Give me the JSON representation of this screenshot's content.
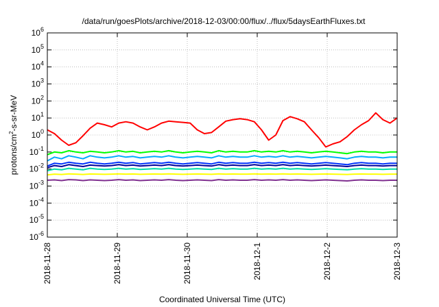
{
  "chart_data": {
    "type": "line",
    "title": "/data/run/goesPlots/archive/2018-12-03/00:00/flux/../flux/5daysEarthFluxes.txt",
    "xlabel": "Coordinated Universal Time (UTC)",
    "ylabel": {
      "prefix": "protons/cm",
      "sup": "2",
      "suffix": "-s-sr-MeV"
    },
    "y_scale": "log",
    "ylim": [
      1e-06,
      1000000.0
    ],
    "y_ticks": [
      {
        "base": "10",
        "exp": "-6",
        "value": 1e-06
      },
      {
        "base": "10",
        "exp": "-5",
        "value": 1e-05
      },
      {
        "base": "10",
        "exp": "-4",
        "value": 0.0001
      },
      {
        "base": "10",
        "exp": "-3",
        "value": 0.001
      },
      {
        "base": "10",
        "exp": "-2",
        "value": 0.01
      },
      {
        "base": "10",
        "exp": "-1",
        "value": 0.1
      },
      {
        "base": "10",
        "exp": "0",
        "value": 1
      },
      {
        "base": "10",
        "exp": "1",
        "value": 10
      },
      {
        "base": "10",
        "exp": "2",
        "value": 100
      },
      {
        "base": "10",
        "exp": "3",
        "value": 1000
      },
      {
        "base": "10",
        "exp": "4",
        "value": 10000
      },
      {
        "base": "10",
        "exp": "5",
        "value": 100000
      },
      {
        "base": "10",
        "exp": "6",
        "value": 1000000
      }
    ],
    "x_ticks": [
      "2018-11-28",
      "2018-11-29",
      "2018-11-30",
      "2018-12-1",
      "2018-12-2",
      "2018-12-3"
    ],
    "xlim": [
      "2018-11-28",
      "2018-12-3"
    ],
    "grid": true,
    "series": [
      {
        "color": "#ff0000",
        "values": [
          2,
          1.2,
          0.5,
          0.25,
          0.35,
          0.9,
          2.5,
          5,
          4,
          3,
          5,
          6,
          5,
          3,
          2,
          3,
          5,
          6.5,
          6,
          5.5,
          5,
          2,
          1.2,
          1.4,
          3,
          6.5,
          8,
          9,
          8,
          6,
          2,
          0.5,
          1,
          7,
          12,
          9,
          6,
          2,
          0.7,
          0.2,
          0.3,
          0.4,
          0.8,
          2,
          4,
          7,
          20,
          8,
          5,
          10
        ]
      },
      {
        "color": "#00ff00",
        "values": [
          0.07,
          0.1,
          0.09,
          0.12,
          0.1,
          0.09,
          0.11,
          0.1,
          0.09,
          0.1,
          0.12,
          0.1,
          0.11,
          0.09,
          0.1,
          0.11,
          0.1,
          0.12,
          0.1,
          0.09,
          0.1,
          0.11,
          0.1,
          0.09,
          0.12,
          0.1,
          0.11,
          0.1,
          0.1,
          0.12,
          0.1,
          0.11,
          0.1,
          0.12,
          0.1,
          0.11,
          0.1,
          0.09,
          0.1,
          0.11,
          0.1,
          0.09,
          0.08,
          0.1,
          0.11,
          0.1,
          0.1,
          0.09,
          0.1,
          0.1
        ]
      },
      {
        "color": "#00aaff",
        "values": [
          0.03,
          0.05,
          0.04,
          0.06,
          0.05,
          0.04,
          0.06,
          0.05,
          0.045,
          0.05,
          0.06,
          0.05,
          0.055,
          0.045,
          0.05,
          0.055,
          0.05,
          0.06,
          0.05,
          0.045,
          0.05,
          0.055,
          0.05,
          0.045,
          0.06,
          0.05,
          0.055,
          0.05,
          0.05,
          0.06,
          0.05,
          0.055,
          0.05,
          0.06,
          0.05,
          0.055,
          0.05,
          0.045,
          0.05,
          0.055,
          0.05,
          0.045,
          0.04,
          0.05,
          0.055,
          0.05,
          0.05,
          0.045,
          0.05,
          0.05
        ]
      },
      {
        "color": "#0033ff",
        "values": [
          0.015,
          0.022,
          0.02,
          0.025,
          0.022,
          0.02,
          0.025,
          0.022,
          0.02,
          0.022,
          0.025,
          0.022,
          0.024,
          0.02,
          0.022,
          0.024,
          0.022,
          0.025,
          0.022,
          0.02,
          0.022,
          0.024,
          0.022,
          0.02,
          0.025,
          0.022,
          0.024,
          0.022,
          0.022,
          0.025,
          0.022,
          0.024,
          0.022,
          0.025,
          0.022,
          0.024,
          0.022,
          0.02,
          0.022,
          0.024,
          0.022,
          0.02,
          0.018,
          0.022,
          0.024,
          0.022,
          0.022,
          0.02,
          0.022,
          0.022
        ]
      },
      {
        "color": "#000099",
        "values": [
          0.012,
          0.016,
          0.014,
          0.018,
          0.016,
          0.014,
          0.017,
          0.016,
          0.015,
          0.016,
          0.018,
          0.016,
          0.017,
          0.015,
          0.016,
          0.017,
          0.016,
          0.018,
          0.016,
          0.015,
          0.016,
          0.017,
          0.016,
          0.015,
          0.018,
          0.016,
          0.017,
          0.016,
          0.016,
          0.018,
          0.016,
          0.017,
          0.016,
          0.018,
          0.016,
          0.017,
          0.016,
          0.015,
          0.016,
          0.017,
          0.016,
          0.015,
          0.014,
          0.016,
          0.017,
          0.016,
          0.016,
          0.015,
          0.016,
          0.016
        ]
      },
      {
        "color": "#00ddaa",
        "values": [
          0.008,
          0.01,
          0.009,
          0.011,
          0.01,
          0.009,
          0.011,
          0.01,
          0.0095,
          0.01,
          0.011,
          0.01,
          0.0105,
          0.0095,
          0.01,
          0.0105,
          0.01,
          0.011,
          0.01,
          0.0095,
          0.01,
          0.0105,
          0.01,
          0.0095,
          0.011,
          0.01,
          0.0105,
          0.01,
          0.01,
          0.011,
          0.01,
          0.0105,
          0.01,
          0.011,
          0.01,
          0.0105,
          0.01,
          0.0095,
          0.01,
          0.0105,
          0.01,
          0.0095,
          0.009,
          0.01,
          0.0105,
          0.01,
          0.01,
          0.0095,
          0.01,
          0.01
        ]
      },
      {
        "color": "#ffff00",
        "values": [
          0.0045,
          0.005,
          0.0048,
          0.0052,
          0.005,
          0.0048,
          0.0051,
          0.005,
          0.0049,
          0.005,
          0.0052,
          0.005,
          0.0051,
          0.0049,
          0.005,
          0.0051,
          0.005,
          0.0052,
          0.005,
          0.0049,
          0.005,
          0.0051,
          0.005,
          0.0049,
          0.0052,
          0.005,
          0.0051,
          0.005,
          0.005,
          0.0052,
          0.005,
          0.0051,
          0.005,
          0.0052,
          0.005,
          0.0051,
          0.005,
          0.0049,
          0.005,
          0.0051,
          0.005,
          0.0049,
          0.0048,
          0.005,
          0.0051,
          0.005,
          0.005,
          0.0049,
          0.005,
          0.005
        ]
      },
      {
        "color": "#7f2f8f",
        "values": [
          0.0022,
          0.0023,
          0.0021,
          0.0024,
          0.0023,
          0.0021,
          0.0023,
          0.0022,
          0.0021,
          0.0022,
          0.0024,
          0.0022,
          0.0023,
          0.0021,
          0.0022,
          0.0023,
          0.0022,
          0.0024,
          0.0022,
          0.0021,
          0.0022,
          0.0023,
          0.0022,
          0.0021,
          0.0024,
          0.0022,
          0.0023,
          0.0022,
          0.0022,
          0.0024,
          0.0022,
          0.0023,
          0.0022,
          0.0024,
          0.0022,
          0.0023,
          0.0022,
          0.0021,
          0.0022,
          0.0023,
          0.0022,
          0.0021,
          0.002,
          0.0022,
          0.0023,
          0.0022,
          0.0022,
          0.0021,
          0.0022,
          0.0022
        ]
      }
    ]
  }
}
